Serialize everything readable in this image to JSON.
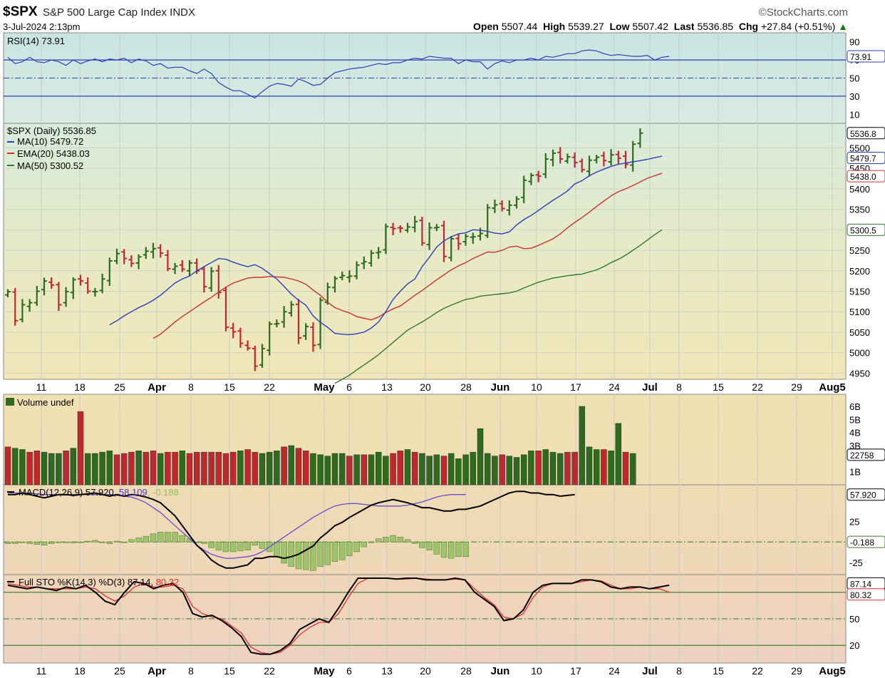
{
  "header": {
    "symbol": "$SPX",
    "name": "S&P 500 Large Cap Index INDX",
    "brand": "©StockCharts.com",
    "date": "3-Jul-2024 2:13pm",
    "open_label": "Open",
    "open": "5507.44",
    "high_label": "High",
    "high": "5539.27",
    "low_label": "Low",
    "low": "5507.42",
    "last_label": "Last",
    "last": "5536.85",
    "chg_label": "Chg",
    "chg": "+27.84 (+0.51%)"
  },
  "colors": {
    "up": "#2e6b1e",
    "down": "#c0282d",
    "ma10": "#2a3fb8",
    "ema20": "#c8322c",
    "ma50": "#2f7a2f",
    "rsi": "#2a3fb8"
  },
  "chart_data": [
    {
      "type": "line",
      "title": "RSI(14) 73.91",
      "ylim": [
        0,
        100
      ],
      "yticks": [
        90,
        70,
        50,
        30,
        10
      ],
      "last_tag": "73.91",
      "x": [
        0,
        1,
        2,
        3,
        4,
        5,
        6,
        7,
        8,
        9,
        10,
        11,
        12,
        13,
        14,
        15,
        16,
        17,
        18,
        19,
        20,
        21,
        22,
        23,
        24,
        25,
        26,
        27,
        28,
        29,
        30,
        31,
        32,
        33,
        34,
        35,
        36,
        37,
        38,
        39,
        40,
        41,
        42,
        43,
        44,
        45,
        46,
        47,
        48,
        49,
        50,
        51,
        52,
        53,
        54,
        55,
        56,
        57,
        58,
        59,
        60,
        61,
        62,
        63,
        64,
        65,
        66,
        67,
        68,
        69,
        70,
        71,
        72,
        73,
        74,
        75,
        76,
        77,
        78,
        79,
        80,
        81,
        82,
        83,
        84,
        85,
        86,
        87,
        88,
        89,
        90,
        91
      ],
      "values": [
        73,
        66,
        68,
        73,
        68,
        67,
        70,
        68,
        64,
        70,
        66,
        69,
        71,
        68,
        71,
        70,
        72,
        67,
        71,
        69,
        64,
        66,
        61,
        62,
        62,
        58,
        55,
        60,
        55,
        45,
        40,
        36,
        36,
        32,
        28,
        35,
        41,
        44,
        43,
        41,
        49,
        46,
        42,
        43,
        50,
        56,
        58,
        60,
        61,
        62,
        64,
        66,
        65,
        67,
        67,
        70,
        72,
        71,
        74,
        73,
        72,
        72,
        66,
        70,
        68,
        68,
        60,
        66,
        69,
        67,
        70,
        70,
        72,
        70,
        74,
        73,
        75,
        77,
        77,
        80,
        81,
        80,
        77,
        75,
        76,
        75,
        74,
        74,
        75,
        70,
        73,
        74
      ]
    },
    {
      "type": "bar",
      "title": "$SPX (Daily) 5536.85",
      "series_labels": [
        "MA(10) 5479.72",
        "EMA(20) 5438.03",
        "MA(50) 5300.52"
      ],
      "ylim": [
        4935,
        5560
      ],
      "yticks": [
        5500,
        5450,
        5400,
        5350,
        5300,
        5250,
        5200,
        5150,
        5100,
        5050,
        5000,
        4950
      ],
      "tags": [
        "5536.8",
        "5479.7",
        "5438.0",
        "5300.5"
      ],
      "ohlc_close": [
        5149,
        5078,
        5117,
        5122,
        5150,
        5175,
        5165,
        5117,
        5149,
        5178,
        5175,
        5150,
        5149,
        5180,
        5224,
        5242,
        5230,
        5218,
        5234,
        5248,
        5254,
        5243,
        5205,
        5211,
        5204,
        5219,
        5200,
        5161,
        5199,
        5147,
        5062,
        5051,
        5023,
        5011,
        4967,
        5010,
        5070,
        5071,
        5100,
        5117,
        5036,
        5064,
        5018,
        5128,
        5160,
        5181,
        5188,
        5187,
        5214,
        5222,
        5243,
        5246,
        5308,
        5303,
        5304,
        5307,
        5320,
        5268,
        5305,
        5306,
        5235,
        5278,
        5266,
        5284,
        5283,
        5291,
        5354,
        5361,
        5352,
        5360,
        5375,
        5421,
        5433,
        5431,
        5473,
        5487,
        5473,
        5478,
        5464,
        5447,
        5470,
        5477,
        5469,
        5483,
        5475,
        5460,
        5509,
        5536
      ],
      "ma10": [
        5068,
        5078,
        5090,
        5100,
        5110,
        5118,
        5128,
        5140,
        5155,
        5170,
        5180,
        5187,
        5200,
        5210,
        5220,
        5230,
        5228,
        5221,
        5215,
        5210,
        5215,
        5206,
        5193,
        5180,
        5162,
        5143,
        5128,
        5116,
        5090,
        5074,
        5062,
        5047,
        5045,
        5044,
        5046,
        5050,
        5060,
        5075,
        5100,
        5130,
        5150,
        5168,
        5180,
        5210,
        5233,
        5258,
        5273,
        5283,
        5290,
        5293,
        5300,
        5299,
        5296,
        5292,
        5290,
        5295,
        5312,
        5325,
        5335,
        5347,
        5360,
        5372,
        5383,
        5395,
        5412,
        5420,
        5432,
        5441,
        5448,
        5455,
        5460,
        5463,
        5466,
        5469,
        5472,
        5476,
        5480
      ],
      "ema20": [
        5035,
        5045,
        5060,
        5075,
        5088,
        5100,
        5112,
        5124,
        5135,
        5148,
        5160,
        5170,
        5176,
        5182,
        5184,
        5184,
        5186,
        5185,
        5184,
        5180,
        5175,
        5167,
        5153,
        5140,
        5123,
        5110,
        5103,
        5097,
        5088,
        5084,
        5080,
        5087,
        5098,
        5107,
        5114,
        5127,
        5140,
        5152,
        5165,
        5178,
        5190,
        5202,
        5212,
        5220,
        5230,
        5238,
        5246,
        5245,
        5250,
        5258,
        5260,
        5254,
        5255,
        5262,
        5270,
        5278,
        5290,
        5305,
        5318,
        5330,
        5343,
        5357,
        5370,
        5383,
        5393,
        5400,
        5408,
        5417,
        5426,
        5432,
        5438
      ],
      "ma50": [
        4925,
        4935,
        4945,
        4958,
        4970,
        4982,
        4995,
        5010,
        5025,
        5040,
        5055,
        5065,
        5075,
        5086,
        5098,
        5108,
        5116,
        5123,
        5130,
        5133,
        5138,
        5140,
        5142,
        5144,
        5146,
        5150,
        5158,
        5165,
        5172,
        5177,
        5182,
        5185,
        5188,
        5190,
        5192,
        5197,
        5202,
        5210,
        5220,
        5228,
        5238,
        5250,
        5262,
        5275,
        5288,
        5300
      ]
    },
    {
      "type": "bar",
      "title": "Volume undef",
      "yticks": [
        "6B",
        "5B",
        "4B",
        "3B",
        "1B"
      ],
      "last_tag": "22758",
      "values": [
        2.9,
        2.8,
        2.7,
        2.5,
        2.6,
        2.5,
        2.4,
        2.4,
        2.6,
        2.8,
        5.6,
        2.4,
        2.4,
        2.5,
        2.6,
        2.3,
        2.4,
        2.5,
        2.6,
        2.5,
        2.6,
        2.4,
        2.5,
        2.5,
        2.6,
        2.4,
        2.5,
        2.5,
        2.5,
        2.5,
        2.4,
        2.5,
        2.6,
        2.7,
        2.5,
        2.4,
        2.5,
        2.6,
        2.9,
        3.0,
        2.8,
        2.6,
        2.4,
        2.3,
        2.2,
        2.4,
        2.4,
        2.2,
        2.3,
        2.3,
        2.3,
        2.5,
        2.2,
        2.4,
        2.6,
        2.7,
        2.5,
        2.4,
        2.2,
        2.3,
        2.2,
        2.4,
        2.0,
        2.3,
        2.5,
        4.3,
        2.4,
        2.2,
        2.3,
        2.2,
        2.1,
        2.3,
        2.6,
        2.6,
        2.7,
        2.5,
        2.4,
        2.5,
        2.5,
        6.0,
        2.9,
        2.7,
        2.7,
        2.6,
        4.7,
        2.5,
        2.4
      ],
      "up": [
        0,
        1,
        1,
        0,
        0,
        1,
        1,
        1,
        0,
        1,
        0,
        1,
        1,
        1,
        1,
        0,
        0,
        0,
        1,
        0,
        0,
        1,
        0,
        0,
        1,
        0,
        0,
        0,
        0,
        0,
        0,
        0,
        1,
        0,
        0,
        1,
        1,
        1,
        0,
        1,
        0,
        0,
        1,
        1,
        1,
        1,
        1,
        0,
        1,
        0,
        1,
        1,
        1,
        0,
        0,
        1,
        0,
        1,
        1,
        1,
        0,
        1,
        1,
        1,
        1,
        1,
        1,
        1,
        0,
        1,
        1,
        1,
        1,
        0,
        1,
        1,
        1,
        0,
        0,
        1,
        1,
        1,
        0,
        1,
        1,
        0,
        1
      ]
    },
    {
      "type": "line",
      "title": "MACD(12,26,9)",
      "macd_value": "57.920",
      "signal_value": "58.109",
      "hist_value": "-0.188",
      "ylim": [
        -40,
        70
      ],
      "yticks": [
        25,
        0,
        -25
      ],
      "tags": [
        "57.920",
        "-0.188"
      ],
      "macd": [
        58,
        58,
        60,
        58,
        56,
        54,
        56,
        58,
        58,
        57,
        58,
        59,
        60,
        58,
        56,
        58,
        56,
        58,
        57,
        55,
        52,
        48,
        40,
        32,
        20,
        8,
        -4,
        -12,
        -22,
        -28,
        -32,
        -32,
        -30,
        -28,
        -20,
        -20,
        -18,
        -18,
        -20,
        -18,
        -15,
        -10,
        -5,
        5,
        12,
        20,
        24,
        30,
        35,
        40,
        45,
        48,
        50,
        52,
        50,
        48,
        45,
        42,
        42,
        40,
        38,
        38,
        40,
        40,
        42,
        44,
        48,
        52,
        56,
        60,
        62,
        62,
        60,
        60,
        58,
        58,
        56,
        57,
        58
      ],
      "signal": [
        60,
        60,
        60,
        60,
        59,
        58,
        58,
        58,
        58,
        58,
        58,
        58,
        58,
        58,
        58,
        57,
        56,
        55,
        52,
        48,
        42,
        36,
        28,
        20,
        12,
        4,
        -4,
        -10,
        -15,
        -18,
        -20,
        -20,
        -19,
        -18,
        -16,
        -12,
        -6,
        0,
        6,
        12,
        18,
        24,
        30,
        35,
        40,
        44,
        46,
        47,
        47,
        46,
        45,
        44,
        44,
        44,
        44,
        45,
        47,
        49,
        52,
        55,
        57,
        58,
        58,
        58
      ]
    },
    {
      "type": "line",
      "title": "Full STO %K(14,3) %D(3)",
      "k_value": "87.14",
      "d_value": "80.32",
      "ylim": [
        0,
        100
      ],
      "yticks": [
        50,
        20
      ],
      "tags": [
        "87.14",
        "80.32"
      ],
      "k": [
        88,
        86,
        84,
        86,
        84,
        82,
        86,
        84,
        88,
        80,
        70,
        66,
        80,
        92,
        90,
        84,
        88,
        90,
        80,
        56,
        52,
        54,
        48,
        40,
        30,
        12,
        10,
        10,
        14,
        22,
        38,
        44,
        50,
        46,
        62,
        80,
        96,
        96,
        96,
        96,
        95,
        96,
        96,
        94,
        94,
        94,
        96,
        94,
        80,
        72,
        64,
        48,
        50,
        60,
        80,
        88,
        90,
        90,
        90,
        94,
        94,
        92,
        86,
        84,
        86,
        86,
        84,
        86,
        88
      ],
      "d": [
        90,
        88,
        86,
        86,
        84,
        84,
        84,
        84,
        86,
        84,
        76,
        70,
        76,
        86,
        90,
        86,
        86,
        88,
        84,
        64,
        56,
        52,
        50,
        42,
        34,
        18,
        12,
        10,
        12,
        20,
        32,
        40,
        46,
        46,
        56,
        74,
        90,
        96,
        96,
        96,
        95,
        95,
        96,
        95,
        94,
        94,
        95,
        94,
        84,
        74,
        66,
        52,
        50,
        56,
        74,
        86,
        90,
        90,
        90,
        92,
        94,
        93,
        88,
        84,
        84,
        86,
        84,
        84,
        80
      ]
    },
    {
      "type": "table",
      "x_tick_labels": [
        "11",
        "18",
        "25",
        "Apr",
        "8",
        "15",
        "22",
        "May",
        "6",
        "13",
        "20",
        "28",
        "Jun",
        "10",
        "17",
        "24",
        "Jul",
        "8",
        "15",
        "22",
        "29",
        "Aug5"
      ]
    }
  ]
}
